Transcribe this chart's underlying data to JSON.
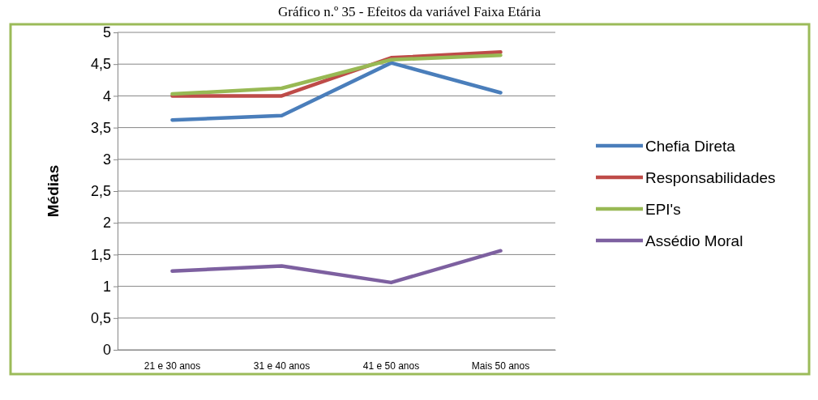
{
  "chart_data": {
    "type": "line",
    "title": "Gráfico n.º 35 - Efeitos da variável Faixa Etária",
    "ylabel": "Médias",
    "categories": [
      "21 e 30 anos",
      "31 e 40 anos",
      "41 e 50 anos",
      "Mais 50 anos"
    ],
    "series": [
      {
        "name": "Chefia Direta",
        "color": "#4a7ebb",
        "values": [
          3.62,
          3.69,
          4.52,
          4.05
        ]
      },
      {
        "name": "Responsabilidades",
        "color": "#be4b48",
        "values": [
          4.0,
          4.0,
          4.6,
          4.69
        ]
      },
      {
        "name": "EPI's",
        "color": "#98b954",
        "values": [
          4.03,
          4.12,
          4.57,
          4.64
        ]
      },
      {
        "name": "Assédio Moral",
        "color": "#7d60a0",
        "values": [
          1.24,
          1.32,
          1.06,
          1.56
        ]
      }
    ],
    "ylim": [
      0,
      5
    ],
    "yticks": [
      0,
      {
        "value": 0.5,
        "label": "0,5"
      },
      1,
      {
        "value": 1.5,
        "label": "1,5"
      },
      2,
      {
        "value": 2.5,
        "label": "2,5"
      },
      3,
      {
        "value": 3.5,
        "label": "3,5"
      },
      4,
      {
        "value": 4.5,
        "label": "4,5"
      },
      5
    ],
    "grid": "y",
    "legend": "right",
    "marker": "none",
    "line_style": "solid"
  }
}
